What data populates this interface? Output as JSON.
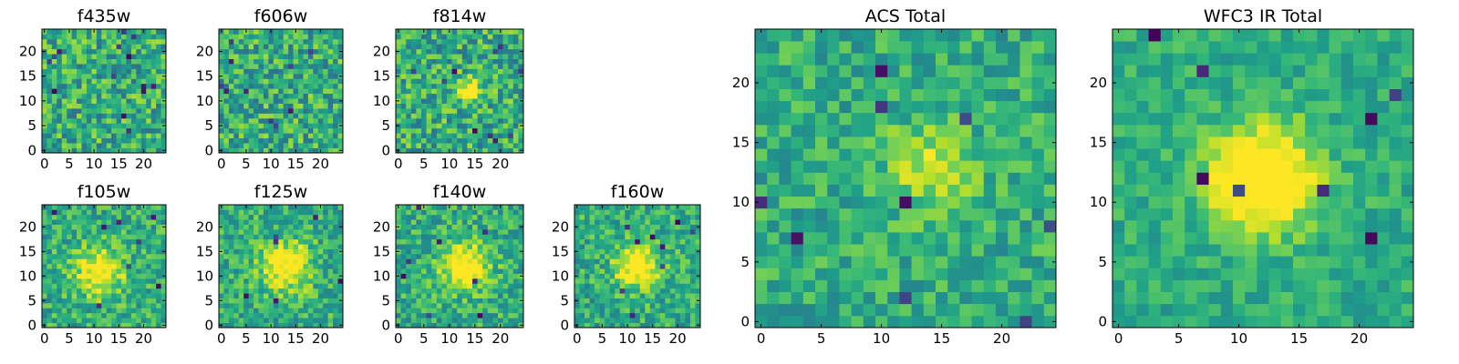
{
  "chart_data": [
    {
      "type": "heatmap",
      "title": "f435w",
      "nx": 25,
      "ny": 25,
      "xlim": [
        0,
        24
      ],
      "ylim": [
        0,
        24
      ],
      "xticks": [
        "0",
        "5",
        "10",
        "15",
        "20"
      ],
      "yticks": [
        "0",
        "5",
        "10",
        "15",
        "20"
      ],
      "colormap": "viridis",
      "source_peak": null,
      "noise": 0.9,
      "seed": 11,
      "dark_pixels": 14
    },
    {
      "type": "heatmap",
      "title": "f606w",
      "nx": 25,
      "ny": 25,
      "xlim": [
        0,
        24
      ],
      "ylim": [
        0,
        24
      ],
      "xticks": [
        "0",
        "5",
        "10",
        "15",
        "20"
      ],
      "yticks": [
        "0",
        "5",
        "10",
        "15",
        "20"
      ],
      "colormap": "viridis",
      "source_peak": null,
      "noise": 0.9,
      "seed": 23,
      "dark_pixels": 10
    },
    {
      "type": "heatmap",
      "title": "f814w",
      "nx": 25,
      "ny": 25,
      "xlim": [
        0,
        24
      ],
      "ylim": [
        0,
        24
      ],
      "xticks": [
        "0",
        "5",
        "10",
        "15",
        "20"
      ],
      "yticks": [
        "0",
        "5",
        "10",
        "15",
        "20"
      ],
      "colormap": "viridis",
      "source_peak": {
        "x": 14,
        "y": 12,
        "amp": 0.6,
        "sigma": 1.6
      },
      "noise": 0.9,
      "seed": 37,
      "dark_pixels": 10
    },
    {
      "type": "heatmap",
      "title": "f105w",
      "nx": 25,
      "ny": 25,
      "xlim": [
        0,
        24
      ],
      "ylim": [
        0,
        24
      ],
      "xticks": [
        "0",
        "5",
        "10",
        "15",
        "20"
      ],
      "yticks": [
        "0",
        "5",
        "10",
        "15",
        "20"
      ],
      "colormap": "viridis",
      "source_peak": {
        "x": 11,
        "y": 11,
        "amp": 0.45,
        "sigma": 3.5
      },
      "noise": 0.7,
      "seed": 41,
      "dark_pixels": 8
    },
    {
      "type": "heatmap",
      "title": "f125w",
      "nx": 25,
      "ny": 25,
      "xlim": [
        0,
        24
      ],
      "ylim": [
        0,
        24
      ],
      "xticks": [
        "0",
        "5",
        "10",
        "15",
        "20"
      ],
      "yticks": [
        "0",
        "5",
        "10",
        "15",
        "20"
      ],
      "colormap": "viridis",
      "source_peak": {
        "x": 13,
        "y": 12,
        "amp": 0.5,
        "sigma": 3.5
      },
      "noise": 0.7,
      "seed": 53,
      "dark_pixels": 6
    },
    {
      "type": "heatmap",
      "title": "f140w",
      "nx": 25,
      "ny": 25,
      "xlim": [
        0,
        24
      ],
      "ylim": [
        0,
        24
      ],
      "xticks": [
        "0",
        "5",
        "10",
        "15",
        "20"
      ],
      "yticks": [
        "0",
        "5",
        "10",
        "15",
        "20"
      ],
      "colormap": "viridis",
      "source_peak": {
        "x": 13,
        "y": 12,
        "amp": 0.55,
        "sigma": 3.2
      },
      "noise": 0.7,
      "seed": 67,
      "dark_pixels": 8
    },
    {
      "type": "heatmap",
      "title": "f160w",
      "nx": 25,
      "ny": 25,
      "xlim": [
        0,
        24
      ],
      "ylim": [
        0,
        24
      ],
      "xticks": [
        "0",
        "5",
        "10",
        "15",
        "20"
      ],
      "yticks": [
        "0",
        "5",
        "10",
        "15",
        "20"
      ],
      "colormap": "viridis",
      "source_peak": {
        "x": 12,
        "y": 12,
        "amp": 0.55,
        "sigma": 3.0
      },
      "noise": 0.7,
      "seed": 79,
      "dark_pixels": 9
    },
    {
      "type": "heatmap",
      "title": "ACS Total",
      "nx": 25,
      "ny": 25,
      "xlim": [
        0,
        24
      ],
      "ylim": [
        0,
        24
      ],
      "xticks": [
        "0",
        "5",
        "10",
        "15",
        "20"
      ],
      "yticks": [
        "0",
        "5",
        "10",
        "15",
        "20"
      ],
      "colormap": "viridis",
      "source_peak": {
        "x": 14,
        "y": 13,
        "amp": 0.3,
        "sigma": 2.5
      },
      "noise": 0.6,
      "seed": 97,
      "dark_pixels": 9
    },
    {
      "type": "heatmap",
      "title": "WFC3 IR Total",
      "nx": 25,
      "ny": 25,
      "xlim": [
        0,
        24
      ],
      "ylim": [
        0,
        24
      ],
      "xticks": [
        "0",
        "5",
        "10",
        "15",
        "20"
      ],
      "yticks": [
        "0",
        "5",
        "10",
        "15",
        "20"
      ],
      "colormap": "viridis",
      "source_peak": {
        "x": 12,
        "y": 12,
        "amp": 0.7,
        "sigma": 3.0
      },
      "noise": 0.45,
      "seed": 131,
      "dark_pixels": 8
    }
  ],
  "colors": {
    "viridis_stops": [
      "#440154",
      "#482878",
      "#3e4989",
      "#31688e",
      "#26828e",
      "#1f9e89",
      "#35b779",
      "#6ece58",
      "#b5de2b",
      "#fde725"
    ],
    "axis": "#000000",
    "background": "#ffffff"
  }
}
